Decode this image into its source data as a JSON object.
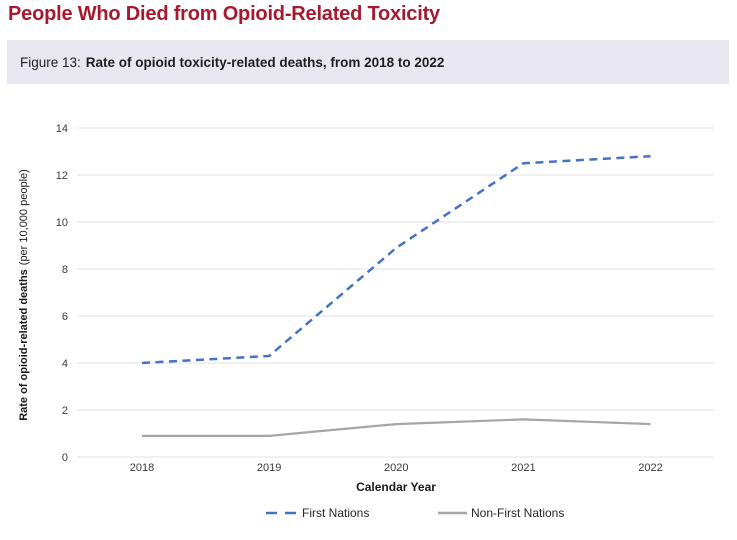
{
  "page": {
    "title": "People Who Died from Opioid-Related Toxicity"
  },
  "figure": {
    "label": "Figure 13:",
    "caption": "Rate of opioid toxicity-related deaths, from 2018 to 2022"
  },
  "chart_data": {
    "type": "line",
    "x": [
      "2018",
      "2019",
      "2020",
      "2021",
      "2022"
    ],
    "series": [
      {
        "name": "First Nations",
        "values": [
          4.0,
          4.3,
          8.9,
          12.5,
          12.8
        ],
        "color": "#4472C4",
        "line_style": "dashed"
      },
      {
        "name": "Non-First Nations",
        "values": [
          0.9,
          0.9,
          1.4,
          1.6,
          1.4
        ],
        "color": "#A6A6A6",
        "line_style": "solid"
      }
    ],
    "xlabel": "Calendar Year",
    "ylabel_bold": "Rate of opioid-related deaths",
    "ylabel_regular": "(per 10,000 people)",
    "ylim": [
      0,
      14
    ],
    "ytick_step": 2,
    "grid": true,
    "legend_position": "bottom",
    "colors": {
      "gridline": "#E2E2E2",
      "tick_text": "#3a3a3a"
    }
  },
  "theme": {
    "title_color": "#A6192E",
    "caption_bg": "#E8E7F0",
    "caption_text": "#1E1E1E"
  }
}
